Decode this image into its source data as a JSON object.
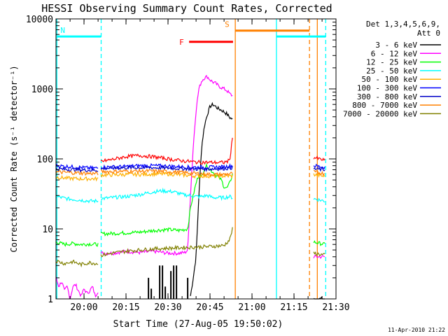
{
  "chart_data": {
    "type": "line",
    "title": "HESSI Observing Summary Count Rates, Corrected",
    "xlabel": "Start Time (27-Aug-05 19:50:02)",
    "ylabel": "Corrected Count Rate (s⁻¹ detector⁻¹)",
    "yscale": "log",
    "xlim_minutes": [
      -0.03,
      99.97
    ],
    "ylim": [
      1,
      10000
    ],
    "x_ticks": [
      {
        "m": 9.97,
        "label": "20:00"
      },
      {
        "m": 24.97,
        "label": "20:15"
      },
      {
        "m": 39.97,
        "label": "20:30"
      },
      {
        "m": 54.97,
        "label": "20:45"
      },
      {
        "m": 69.97,
        "label": "21:00"
      },
      {
        "m": 84.97,
        "label": "21:15"
      },
      {
        "m": 99.97,
        "label": "21:30"
      }
    ],
    "y_ticks": [
      {
        "v": 1,
        "label": "1"
      },
      {
        "v": 10,
        "label": "10"
      },
      {
        "v": 100,
        "label": "100"
      },
      {
        "v": 1000,
        "label": "1000"
      },
      {
        "v": 10000,
        "label": "10000"
      }
    ],
    "legend_header": [
      "Det 1,3,4,5,6,9,",
      "Att 0"
    ],
    "footer_date": "11-Apr-2010 21:22",
    "series": [
      {
        "name": "3 - 6 keV",
        "color": "#000000",
        "segments": [
          [
            [
              48,
              1.1
            ],
            [
              49,
              2
            ],
            [
              50,
              4
            ],
            [
              51,
              30
            ],
            [
              52,
              150
            ],
            [
              53,
              300
            ],
            [
              54,
              430
            ],
            [
              55,
              560
            ],
            [
              56,
              600
            ],
            [
              57,
              560
            ],
            [
              58,
              520
            ],
            [
              59,
              500
            ],
            [
              60,
              470
            ],
            [
              61,
              440
            ],
            [
              62,
              390
            ],
            [
              63,
              370
            ]
          ],
          [
            [
              92,
              1
            ],
            [
              94,
              1
            ],
            [
              96,
              1
            ]
          ]
        ],
        "spikes": [
          [
            33,
            2
          ],
          [
            34,
            1.4
          ],
          [
            37,
            3
          ],
          [
            38,
            3
          ],
          [
            39,
            1.5
          ],
          [
            41,
            2.5
          ],
          [
            42,
            3
          ],
          [
            43,
            3
          ],
          [
            47,
            2
          ]
        ]
      },
      {
        "name": "6 - 12 keV",
        "color": "#ff00ff",
        "segments": [
          [
            [
              0,
              2
            ],
            [
              1,
              1.5
            ],
            [
              2,
              1.8
            ],
            [
              3,
              1.3
            ],
            [
              4,
              1.5
            ],
            [
              5,
              1
            ],
            [
              6,
              1.5
            ],
            [
              7,
              1.6
            ],
            [
              8,
              1.3
            ],
            [
              9,
              1.1
            ],
            [
              10,
              1.4
            ],
            [
              11,
              1.2
            ],
            [
              12,
              1.3
            ],
            [
              13,
              1.5
            ],
            [
              14,
              1.1
            ],
            [
              15,
              1.3
            ]
          ],
          [
            [
              16,
              4.5
            ],
            [
              20,
              4.5
            ],
            [
              25,
              4.8
            ],
            [
              30,
              4.6
            ],
            [
              35,
              4.8
            ],
            [
              40,
              4.5
            ],
            [
              44,
              4.5
            ],
            [
              46,
              4.6
            ],
            [
              47,
              5
            ],
            [
              48,
              30
            ],
            [
              49,
              150
            ],
            [
              50,
              500
            ],
            [
              51,
              1000
            ],
            [
              52,
              1300
            ],
            [
              53,
              1450
            ],
            [
              54,
              1500
            ],
            [
              55,
              1350
            ],
            [
              56,
              1250
            ],
            [
              57,
              1200
            ],
            [
              58,
              1100
            ],
            [
              59,
              1050
            ],
            [
              60,
              1000
            ],
            [
              61,
              950
            ],
            [
              62,
              850
            ],
            [
              63,
              800
            ]
          ],
          [
            [
              92,
              4
            ],
            [
              96,
              4
            ]
          ]
        ]
      },
      {
        "name": "12 - 25 keV",
        "color": "#00ff00",
        "segments": [
          [
            [
              0,
              6.5
            ],
            [
              3,
              6
            ],
            [
              6,
              6.2
            ],
            [
              9,
              6
            ],
            [
              12,
              6.1
            ],
            [
              15,
              6
            ]
          ],
          [
            [
              16,
              8.5
            ],
            [
              20,
              8.6
            ],
            [
              25,
              8.8
            ],
            [
              30,
              9
            ],
            [
              35,
              9.5
            ],
            [
              40,
              9.8
            ],
            [
              44,
              9.5
            ],
            [
              47,
              10
            ],
            [
              48,
              20
            ],
            [
              49,
              30
            ],
            [
              50,
              45
            ],
            [
              51,
              60
            ],
            [
              52,
              55
            ],
            [
              53,
              75
            ],
            [
              54,
              80
            ],
            [
              55,
              70
            ],
            [
              56,
              65
            ],
            [
              57,
              58
            ],
            [
              58,
              55
            ],
            [
              59,
              50
            ],
            [
              60,
              40
            ],
            [
              61,
              38
            ],
            [
              62,
              45
            ],
            [
              63,
              60
            ]
          ],
          [
            [
              92,
              6.5
            ],
            [
              96,
              6
            ]
          ]
        ]
      },
      {
        "name": "25 - 50 keV",
        "color": "#00ffff",
        "segments": [
          [
            [
              0,
              29
            ],
            [
              4,
              27
            ],
            [
              8,
              26
            ],
            [
              12,
              25
            ],
            [
              15,
              25
            ]
          ],
          [
            [
              16,
              27
            ],
            [
              20,
              28
            ],
            [
              25,
              29
            ],
            [
              30,
              31
            ],
            [
              35,
              34
            ],
            [
              38,
              35
            ],
            [
              42,
              34
            ],
            [
              45,
              31
            ],
            [
              48,
              30
            ],
            [
              50,
              29
            ],
            [
              52,
              29
            ],
            [
              54,
              30
            ],
            [
              56,
              28
            ],
            [
              58,
              28
            ],
            [
              60,
              28
            ],
            [
              62,
              29
            ],
            [
              63,
              28
            ]
          ],
          [
            [
              92,
              27
            ],
            [
              96,
              25
            ]
          ]
        ]
      },
      {
        "name": "50 - 100 keV",
        "color": "#ffb000",
        "segments": [
          [
            [
              0,
              55
            ],
            [
              4,
              53
            ],
            [
              8,
              52
            ],
            [
              12,
              52
            ],
            [
              15,
              52
            ]
          ],
          [
            [
              16,
              59
            ],
            [
              20,
              59
            ],
            [
              25,
              60
            ],
            [
              30,
              60
            ],
            [
              35,
              61
            ],
            [
              40,
              61
            ],
            [
              45,
              59
            ],
            [
              50,
              57
            ],
            [
              55,
              57
            ],
            [
              60,
              57
            ],
            [
              63,
              57
            ]
          ],
          [
            [
              92,
              60
            ],
            [
              96,
              56
            ]
          ]
        ]
      },
      {
        "name": "100 - 300 keV",
        "color": "#0000ff",
        "segments": [
          [
            [
              0,
              80
            ],
            [
              4,
              78
            ],
            [
              8,
              76
            ],
            [
              12,
              74
            ],
            [
              15,
              74
            ]
          ],
          [
            [
              16,
              76
            ],
            [
              20,
              77
            ],
            [
              25,
              78
            ],
            [
              30,
              80
            ],
            [
              35,
              80
            ],
            [
              40,
              79
            ],
            [
              45,
              77
            ],
            [
              50,
              76
            ],
            [
              55,
              76
            ],
            [
              60,
              77
            ],
            [
              63,
              80
            ]
          ],
          [
            [
              92,
              80
            ],
            [
              96,
              76
            ]
          ]
        ]
      },
      {
        "name": "300 - 800 keV",
        "color": "#0000c8",
        "segments": [
          [
            [
              0,
              72
            ],
            [
              4,
              71
            ],
            [
              8,
              70
            ],
            [
              12,
              69
            ],
            [
              15,
              69
            ]
          ],
          [
            [
              16,
              73
            ],
            [
              20,
              74
            ],
            [
              25,
              75
            ],
            [
              30,
              75
            ],
            [
              35,
              75
            ],
            [
              40,
              74
            ],
            [
              45,
              73
            ],
            [
              50,
              72
            ],
            [
              55,
              72
            ],
            [
              60,
              73
            ],
            [
              63,
              75
            ]
          ],
          [
            [
              92,
              72
            ],
            [
              96,
              70
            ]
          ]
        ]
      },
      {
        "name": "800 - 7000 keV",
        "color": "#ff8000",
        "segments": [
          [
            [
              0,
              65
            ],
            [
              4,
              64
            ],
            [
              8,
              63
            ],
            [
              12,
              62
            ],
            [
              15,
              62
            ]
          ],
          [
            [
              16,
              66
            ],
            [
              20,
              66
            ],
            [
              25,
              67
            ],
            [
              30,
              67
            ],
            [
              35,
              67
            ],
            [
              40,
              66
            ],
            [
              45,
              64
            ],
            [
              50,
              62
            ],
            [
              55,
              60
            ],
            [
              60,
              60
            ],
            [
              63,
              62
            ]
          ],
          [
            [
              92,
              65
            ],
            [
              96,
              62
            ]
          ]
        ]
      },
      {
        "name": "7000 - 20000 keV",
        "color": "#808000",
        "segments": [
          [
            [
              0,
              3.5
            ],
            [
              3,
              3.2
            ],
            [
              6,
              3.4
            ],
            [
              9,
              3.1
            ],
            [
              12,
              3.3
            ],
            [
              15,
              3.2
            ]
          ],
          [
            [
              16,
              4.2
            ],
            [
              20,
              4.5
            ],
            [
              25,
              4.8
            ],
            [
              30,
              5
            ],
            [
              35,
              5.2
            ],
            [
              40,
              5.3
            ],
            [
              45,
              5.4
            ],
            [
              50,
              5.5
            ],
            [
              55,
              5.6
            ],
            [
              60,
              5.8
            ],
            [
              62,
              7
            ],
            [
              63,
              10
            ]
          ],
          [
            [
              92,
              4.5
            ],
            [
              96,
              4.2
            ]
          ]
        ]
      },
      {
        "name": "",
        "color": "#ff0000",
        "segments": [
          [
            [
              16,
              92
            ],
            [
              20,
              98
            ],
            [
              25,
              108
            ],
            [
              30,
              112
            ],
            [
              35,
              107
            ],
            [
              40,
              100
            ],
            [
              45,
              94
            ],
            [
              50,
              90
            ],
            [
              55,
              89
            ],
            [
              60,
              89
            ],
            [
              62,
              95
            ],
            [
              63,
              200
            ]
          ],
          [
            [
              92,
              105
            ],
            [
              96,
              95
            ]
          ]
        ]
      }
    ],
    "vertical_lines": [
      {
        "m": 0.3,
        "color": "#00ffff",
        "style": "solid"
      },
      {
        "m": 16.1,
        "color": "#00ffff",
        "style": "dashed"
      },
      {
        "m": 64.0,
        "color": "#ff8000",
        "style": "solid"
      },
      {
        "m": 78.7,
        "color": "#00ffff",
        "style": "solid"
      },
      {
        "m": 90.5,
        "color": "#ff8000",
        "style": "dashed"
      },
      {
        "m": 93.3,
        "color": "#ff8000",
        "style": "solid"
      },
      {
        "m": 96.3,
        "color": "#00ffff",
        "style": "dashed"
      }
    ],
    "interval_bars": [
      {
        "label": "N",
        "color": "#00ffff",
        "x0": 0.3,
        "x1": 16.1,
        "y": 5600
      },
      {
        "label": "F",
        "color": "#ff0000",
        "x0": 47.5,
        "x1": 63.2,
        "y": 4700
      },
      {
        "label": "S",
        "color": "#ff8000",
        "x0": 64.0,
        "x1": 90.5,
        "y": 6800
      },
      {
        "label": "",
        "color": "#00ffff",
        "x0": 78.7,
        "x1": 96.3,
        "y": 5600
      }
    ]
  }
}
